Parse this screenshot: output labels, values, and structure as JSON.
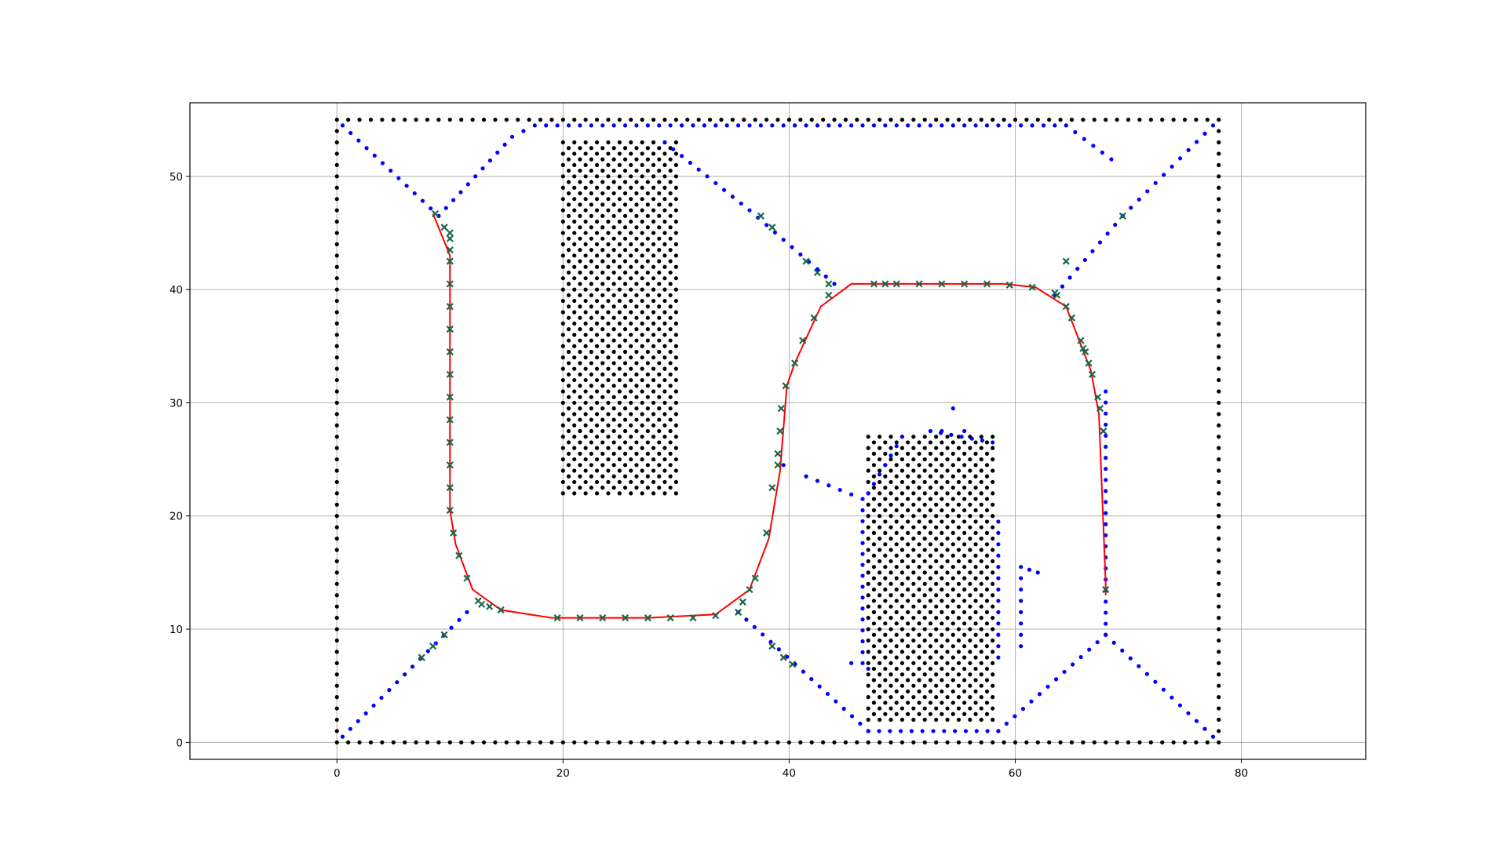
{
  "chart_data": {
    "type": "scatter",
    "title": "",
    "xlabel": "",
    "ylabel": "",
    "xlim": [
      -13,
      91
    ],
    "ylim": [
      -1.5,
      56.5
    ],
    "grid": true,
    "x_ticks": [
      "0",
      "20",
      "40",
      "60",
      "80"
    ],
    "y_ticks": [
      "0",
      "10",
      "20",
      "30",
      "40",
      "50"
    ],
    "colors": {
      "obstacles": "#000000",
      "voronoi": "#0000ff",
      "path": "#ff0000",
      "waypoints": "#00725a",
      "waypoint_cross": "#7f3f00",
      "grid": "#b0b0b0"
    },
    "series": [
      {
        "marker": "dot",
        "color": "#000000",
        "rectangles": [
          {
            "x": [
              20,
              30
            ],
            "y": [
              22,
              53
            ],
            "step": 1
          },
          {
            "x": [
              47,
              58
            ],
            "y": [
              2,
              27
            ],
            "step": 1
          }
        ],
        "boundary": {
          "x": [
            0,
            78
          ],
          "y": [
            0,
            55
          ],
          "step": 1
        }
      },
      {
        "marker": "dot",
        "color": "#0000ff",
        "polylines": [
          [
            [
              0.5,
              54.5
            ],
            [
              9,
              46.5
            ]
          ],
          [
            [
              77.5,
              54.5
            ],
            [
              69.5,
              46.5
            ]
          ],
          [
            [
              0.5,
              0.5
            ],
            [
              11.5,
              11.5
            ]
          ],
          [
            [
              77.5,
              0.5
            ],
            [
              68,
              9.5
            ]
          ],
          [
            [
              9,
              46.5
            ],
            [
              15.5,
              53.5
            ],
            [
              17.5,
              54.5
            ],
            [
              64.5,
              54.5
            ],
            [
              68.5,
              51.5
            ]
          ],
          [
            [
              29,
              53
            ],
            [
              36.5,
              47
            ],
            [
              44,
              40.5
            ]
          ],
          [
            [
              35.5,
              11.5
            ],
            [
              47,
              1
            ]
          ],
          [
            [
              47,
              1
            ],
            [
              58.5,
              1
            ]
          ],
          [
            [
              58.5,
              1
            ],
            [
              68,
              9.5
            ]
          ],
          [
            [
              68,
              9.5
            ],
            [
              68,
              31
            ]
          ],
          [
            [
              63.5,
              39.5
            ],
            [
              69.5,
              46.5
            ]
          ],
          [
            [
              46.5,
              7
            ],
            [
              46.5,
              20.5
            ]
          ],
          [
            [
              47,
              22
            ],
            [
              50,
              27
            ]
          ],
          [
            [
              52.5,
              27.5
            ],
            [
              58,
              26.5
            ]
          ],
          [
            [
              58.5,
              19.5
            ],
            [
              58.5,
              7.5
            ]
          ],
          [
            [
              41.5,
              23.5
            ],
            [
              46.5,
              21.5
            ]
          ],
          [
            [
              60.5,
              15.5
            ],
            [
              62,
              15
            ]
          ],
          [
            [
              60.5,
              8.5
            ],
            [
              60.5,
              14.5
            ]
          ]
        ],
        "points": [
          [
            54.5,
            29.5
          ],
          [
            53.5,
            27.5
          ],
          [
            55.5,
            27.5
          ],
          [
            39.5,
            24.5
          ],
          [
            47,
            6.5
          ],
          [
            45.5,
            7
          ]
        ]
      },
      {
        "marker": "line",
        "color": "#ff0000",
        "points": [
          [
            8.5,
            46.7
          ],
          [
            10,
            43
          ],
          [
            10,
            20.5
          ],
          [
            10.5,
            17.5
          ],
          [
            12,
            13.5
          ],
          [
            14.5,
            11.7
          ],
          [
            19,
            11
          ],
          [
            27.5,
            11
          ],
          [
            33.5,
            11.3
          ],
          [
            36.5,
            13.5
          ],
          [
            38.2,
            18
          ],
          [
            39.2,
            24
          ],
          [
            39.8,
            31.5
          ],
          [
            40.5,
            33.5
          ],
          [
            42.8,
            38.5
          ],
          [
            45.5,
            40.5
          ],
          [
            59,
            40.5
          ],
          [
            61.8,
            40.2
          ],
          [
            64.5,
            38.5
          ],
          [
            66.7,
            32.8
          ],
          [
            67.4,
            29
          ],
          [
            68,
            14
          ],
          [
            68,
            13
          ]
        ]
      },
      {
        "marker": "x",
        "color": "#00725a",
        "points": [
          [
            8.7,
            46.7
          ],
          [
            9.5,
            45.5
          ],
          [
            10,
            45
          ],
          [
            10,
            44.5
          ],
          [
            10,
            43.5
          ],
          [
            10,
            42.5
          ],
          [
            10,
            40.5
          ],
          [
            10,
            38.5
          ],
          [
            10,
            36.5
          ],
          [
            10,
            34.5
          ],
          [
            10,
            32.5
          ],
          [
            10,
            30.5
          ],
          [
            10,
            28.5
          ],
          [
            10,
            26.5
          ],
          [
            10,
            24.5
          ],
          [
            10,
            22.5
          ],
          [
            10,
            20.5
          ],
          [
            10.3,
            18.5
          ],
          [
            10.8,
            16.5
          ],
          [
            11.5,
            14.5
          ],
          [
            12.5,
            12.5
          ],
          [
            12.8,
            12.2
          ],
          [
            13.5,
            12
          ],
          [
            14.5,
            11.7
          ],
          [
            19.5,
            11
          ],
          [
            21.5,
            11
          ],
          [
            23.5,
            11
          ],
          [
            25.5,
            11
          ],
          [
            27.5,
            11
          ],
          [
            29.5,
            11
          ],
          [
            31.5,
            11
          ],
          [
            33.5,
            11.2
          ],
          [
            35.5,
            11.5
          ],
          [
            35.9,
            12.4
          ],
          [
            36.5,
            13.5
          ],
          [
            37,
            14.5
          ],
          [
            38,
            18.5
          ],
          [
            38.5,
            22.5
          ],
          [
            39,
            24.5
          ],
          [
            39,
            25.5
          ],
          [
            39.2,
            27.5
          ],
          [
            39.3,
            29.5
          ],
          [
            39.7,
            31.5
          ],
          [
            40.5,
            33.5
          ],
          [
            41.2,
            35.5
          ],
          [
            42.2,
            37.5
          ],
          [
            37.5,
            46.5
          ],
          [
            38.5,
            45.5
          ],
          [
            41.5,
            42.5
          ],
          [
            42.5,
            41.5
          ],
          [
            43.5,
            40.5
          ],
          [
            43.5,
            39.5
          ],
          [
            47.5,
            40.5
          ],
          [
            48.5,
            40.5
          ],
          [
            49.5,
            40.5
          ],
          [
            51.5,
            40.5
          ],
          [
            53.5,
            40.5
          ],
          [
            55.5,
            40.5
          ],
          [
            57.5,
            40.5
          ],
          [
            59.5,
            40.4
          ],
          [
            61.5,
            40.2
          ],
          [
            63.5,
            39.7
          ],
          [
            63.7,
            39.5
          ],
          [
            64.5,
            38.5
          ],
          [
            65,
            37.5
          ],
          [
            65.8,
            35.5
          ],
          [
            66,
            34.8
          ],
          [
            66.2,
            34.5
          ],
          [
            66.5,
            33.5
          ],
          [
            66.8,
            32.5
          ],
          [
            67.3,
            30.5
          ],
          [
            67.5,
            29.5
          ],
          [
            67.8,
            27.5
          ],
          [
            68,
            13.5
          ],
          [
            64.5,
            42.5
          ],
          [
            69.5,
            46.5
          ],
          [
            7.5,
            7.5
          ],
          [
            8.5,
            8.5
          ],
          [
            9.5,
            9.5
          ],
          [
            38.5,
            8.5
          ],
          [
            39.5,
            7.5
          ],
          [
            40.3,
            6.9
          ]
        ]
      }
    ]
  }
}
